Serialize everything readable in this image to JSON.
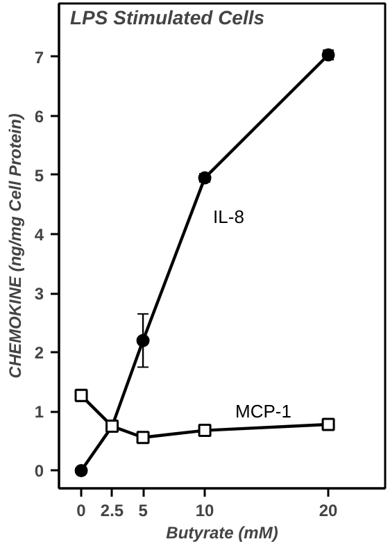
{
  "chart_data": {
    "type": "line",
    "title": "LPS Stimulated Cells",
    "xlabel": "Butyrate (mM)",
    "ylabel": "CHEMOKINE (ng/mg Cell Protein)",
    "x": [
      0,
      2.5,
      5,
      10,
      20
    ],
    "series": [
      {
        "name": "IL-8",
        "color": "#000000",
        "marker": "circle",
        "values": [
          0.0,
          0.75,
          2.2,
          4.95,
          7.03
        ],
        "errors": [
          0.05,
          null,
          0.45,
          0.07,
          0.08
        ]
      },
      {
        "name": "MCP-1",
        "color": "#000000",
        "marker": "square",
        "values": [
          1.27,
          0.75,
          0.56,
          0.68,
          0.78
        ],
        "errors": [
          0.1,
          null,
          0.05,
          0.05,
          0.07
        ]
      }
    ],
    "xlim": [
      -1.8,
      24.6
    ],
    "ylim": [
      -0.3,
      7.9
    ],
    "xticks": [
      0,
      2.5,
      5,
      10,
      20
    ],
    "yticks": [
      0,
      1,
      2,
      3,
      4,
      5,
      6,
      7
    ],
    "grid": false,
    "line_style": "solid"
  }
}
